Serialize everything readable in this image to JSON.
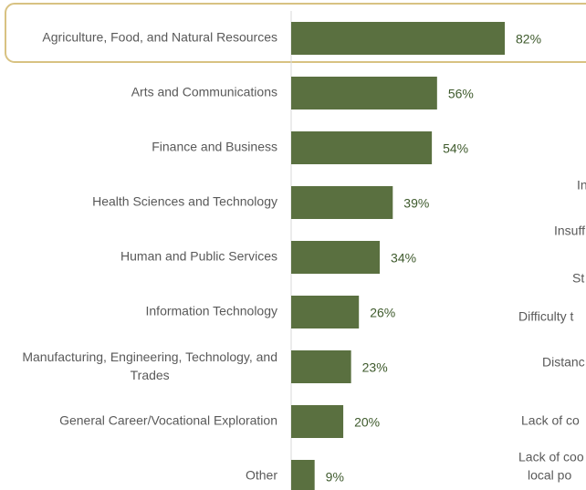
{
  "chart_data": {
    "type": "bar",
    "orientation": "horizontal",
    "categories": [
      "Agriculture, Food, and Natural Resources",
      "Arts and Communications",
      "Finance and Business",
      "Health Sciences and Technology",
      "Human and Public Services",
      "Information Technology",
      "Manufacturing, Engineering, Technology, and Trades",
      "General Career/Vocational Exploration",
      "Other"
    ],
    "values": [
      82,
      56,
      54,
      39,
      34,
      26,
      23,
      20,
      9
    ],
    "value_labels": [
      "82%",
      "56%",
      "54%",
      "39%",
      "34%",
      "26%",
      "23%",
      "20%",
      "9%"
    ],
    "color": "#5a7040",
    "xlim": [
      0,
      100
    ]
  },
  "overflow_text": [
    "In",
    "Insuff",
    "St",
    "Difficulty t",
    "Distanc",
    "Lack of co",
    "Lack of coo",
    "local po"
  ]
}
